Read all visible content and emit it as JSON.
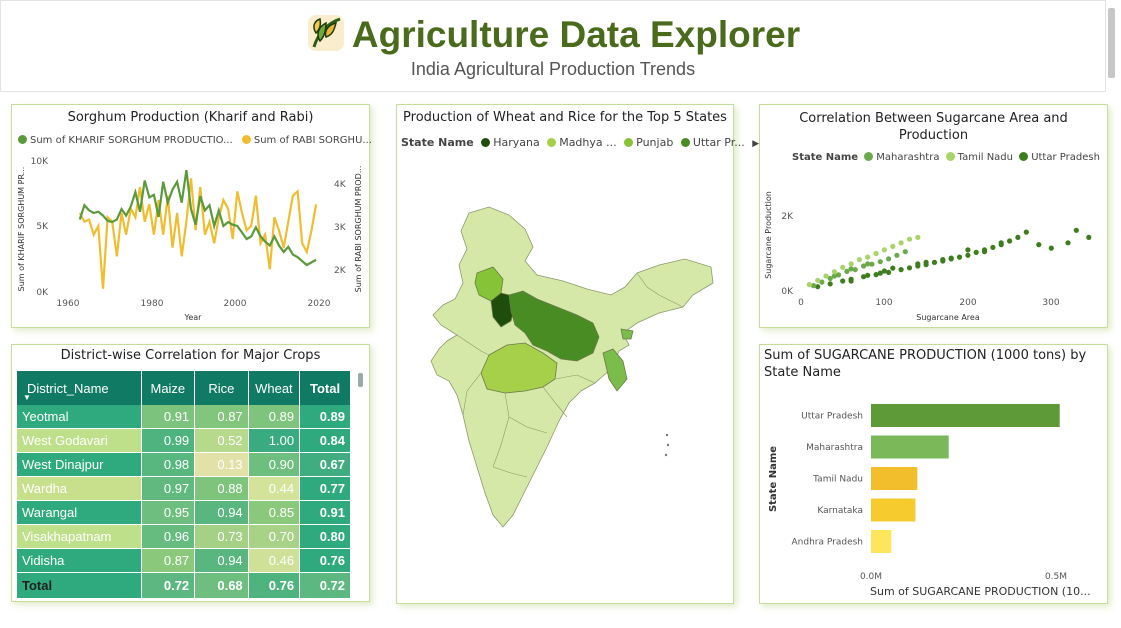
{
  "header": {
    "title": "Agriculture Data Explorer",
    "subtitle": "India Agricultural Production Trends",
    "logo_icon": "wheat-leaf-icon"
  },
  "sorghum": {
    "title": "Sorghum Production (Kharif and Rabi)",
    "legend": [
      {
        "label": "Sum of KHARIF SORGHUM PRODUCTIO...",
        "color": "#5a9a3a"
      },
      {
        "label": "Sum of RABI SORGHU...",
        "color": "#f0bc30"
      }
    ],
    "y_left_ticks": [
      "10K",
      "5K",
      "0K"
    ],
    "y_right_ticks": [
      "4K",
      "3K",
      "2K"
    ],
    "x_ticks": [
      "1960",
      "1980",
      "2000",
      "2020"
    ],
    "y_left_label": "Sum of KHARIF SORGHUM PR...",
    "y_right_label": "Sum of RABI SORGHUM PROD...",
    "x_label": "Year"
  },
  "matrix": {
    "title": "District-wise Correlation for Major Crops",
    "headers": [
      "District_Name",
      "Maize",
      "Rice",
      "Wheat",
      "Total"
    ],
    "rows": [
      {
        "name": "Yeotmal",
        "maize": "0.91",
        "rice": "0.87",
        "wheat": "0.89",
        "total": "0.89"
      },
      {
        "name": "West Godavari",
        "maize": "0.99",
        "rice": "0.52",
        "wheat": "1.00",
        "total": "0.84"
      },
      {
        "name": "West Dinajpur",
        "maize": "0.98",
        "rice": "0.13",
        "wheat": "0.90",
        "total": "0.67"
      },
      {
        "name": "Wardha",
        "maize": "0.97",
        "rice": "0.88",
        "wheat": "0.44",
        "total": "0.77"
      },
      {
        "name": "Warangal",
        "maize": "0.95",
        "rice": "0.94",
        "wheat": "0.85",
        "total": "0.91"
      },
      {
        "name": "Visakhapatnam",
        "maize": "0.96",
        "rice": "0.73",
        "wheat": "0.70",
        "total": "0.80"
      },
      {
        "name": "Vidisha",
        "maize": "0.87",
        "rice": "0.94",
        "wheat": "0.46",
        "total": "0.76"
      }
    ],
    "total_row": {
      "name": "Total",
      "maize": "0.72",
      "rice": "0.68",
      "wheat": "0.76",
      "total": "0.72"
    },
    "colors": {
      "header": "#117a65",
      "name_cells": [
        "#2eaa7e",
        "#bfe08a",
        "#2eaa7e",
        "#c8e08c",
        "#2eaa7e",
        "#bfe08a",
        "#2eaa7e"
      ],
      "maize": [
        "#7cc47e",
        "#4fb380",
        "#58b67f",
        "#62b97f",
        "#6ebe7f",
        "#66bb7f",
        "#8ac97c"
      ],
      "rice": [
        "#82c57c",
        "#b6d98c",
        "#e2e2a8",
        "#7ec47c",
        "#5ab67f",
        "#a5d186",
        "#5ab67f"
      ],
      "wheat": [
        "#7ec47c",
        "#3aaa80",
        "#6ebe7f",
        "#d4e39a",
        "#8ac97c",
        "#a8d288",
        "#cfe098"
      ],
      "total": [
        "#2eaa7e",
        "#2eaa7e",
        "#40ad80",
        "#2eaa7e",
        "#2eaa7e",
        "#2eaa7e",
        "#2eaa7e"
      ],
      "total_row": [
        "#2eaa7e",
        "#5cb880",
        "#6ebe7f",
        "#4fb380",
        "#5cb880"
      ]
    }
  },
  "map": {
    "title": "Production of Wheat and Rice for the Top 5 States",
    "legend_label": "State Name",
    "legend": [
      {
        "label": "Haryana",
        "color": "#1f4d0c"
      },
      {
        "label": "Madhya ...",
        "color": "#a6d04a"
      },
      {
        "label": "Punjab",
        "color": "#86c336"
      },
      {
        "label": "Uttar Pr...",
        "color": "#4a8c24"
      }
    ],
    "legend_arrow": "chevron-right-icon"
  },
  "sugar_scatter": {
    "title": "Correlation Between Sugarcane Area and Production",
    "legend_label": "State Name",
    "legend": [
      {
        "label": "Maharashtra",
        "color": "#6aaa4a"
      },
      {
        "label": "Tamil Nadu",
        "color": "#a8d46a"
      },
      {
        "label": "Uttar Pradesh",
        "color": "#3e7d1e"
      }
    ],
    "y_ticks": [
      "2K",
      "0K"
    ],
    "x_ticks": [
      "0",
      "100",
      "200",
      "300"
    ],
    "y_label": "Sugarcane Production",
    "x_label": "Sugarcane Area"
  },
  "sugar_bar": {
    "title": "Sum of SUGARCANE PRODUCTION (1000 tons) by State Name",
    "y_label": "State Name",
    "x_label": "Sum of SUGARCANE PRODUCTION (10...",
    "x_ticks": [
      "0.0M",
      "0.5M"
    ]
  },
  "chart_data": [
    {
      "type": "line",
      "title": "Sorghum Production (Kharif and Rabi)",
      "xlabel": "Year",
      "ylabel": "Sum of KHARIF SORGHUM PR...",
      "xlim": [
        1960,
        2020
      ],
      "series": [
        {
          "name": "Sum of KHARIF SORGHUM PRODUCTIO...",
          "axis": "left",
          "ylim": [
            0,
            10000
          ],
          "x": [
            1966,
            1967,
            1968,
            1969,
            1970,
            1971,
            1972,
            1973,
            1974,
            1975,
            1976,
            1977,
            1978,
            1979,
            1980,
            1981,
            1982,
            1983,
            1984,
            1985,
            1986,
            1987,
            1988,
            1989,
            1990,
            1991,
            1992,
            1993,
            1994,
            1995,
            1996,
            1997,
            1998,
            1999,
            2000,
            2001,
            2002,
            2003,
            2004,
            2005,
            2006,
            2007,
            2008,
            2009,
            2010,
            2011,
            2012,
            2013,
            2014,
            2015,
            2016,
            2017
          ],
          "y": [
            5500,
            6600,
            6200,
            6000,
            6100,
            5800,
            5400,
            5300,
            5500,
            6300,
            5800,
            6500,
            7600,
            6100,
            8500,
            7200,
            7400,
            5700,
            8400,
            6800,
            7800,
            8400,
            6800,
            9300,
            6300,
            5100,
            7300,
            6200,
            6600,
            5000,
            6200,
            5000,
            5300,
            5100,
            5000,
            4500,
            4000,
            4200,
            4900,
            4200,
            3800,
            3500,
            4200,
            3500,
            3000,
            3400,
            2800,
            2600,
            2300,
            2000,
            2200,
            2400
          ]
        },
        {
          "name": "Sum of RABI SORGHU...",
          "axis": "right",
          "ylim": [
            1500,
            4500
          ],
          "x": [
            1966,
            1967,
            1968,
            1969,
            1970,
            1971,
            1972,
            1973,
            1974,
            1975,
            1976,
            1977,
            1978,
            1979,
            1980,
            1981,
            1982,
            1983,
            1984,
            1985,
            1986,
            1987,
            1988,
            1989,
            1990,
            1991,
            1992,
            1993,
            1994,
            1995,
            1996,
            1997,
            1998,
            1999,
            2000,
            2001,
            2002,
            2003,
            2004,
            2005,
            2006,
            2007,
            2008,
            2009,
            2010,
            2011,
            2012,
            2013,
            2014,
            2015,
            2016,
            2017
          ],
          "y": [
            3300,
            3100,
            3150,
            2800,
            3000,
            1550,
            3200,
            3100,
            2300,
            3300,
            2800,
            3400,
            3200,
            3900,
            3100,
            3500,
            2800,
            3600,
            2800,
            3700,
            2500,
            3300,
            2300,
            3100,
            4100,
            2900,
            3900,
            2800,
            3100,
            2600,
            3200,
            3600,
            3400,
            2700,
            3800,
            3300,
            2900,
            3000,
            3700,
            2600,
            2800,
            2000,
            3200,
            2900,
            2500,
            3100,
            3700,
            3800,
            2600,
            2400,
            2900,
            3500
          ]
        }
      ]
    },
    {
      "type": "scatter",
      "title": "Correlation Between Sugarcane Area and Production",
      "xlabel": "Sugarcane Area",
      "ylabel": "Sugarcane Production",
      "xlim": [
        0,
        350
      ],
      "ylim": [
        0,
        2800
      ],
      "series": [
        {
          "name": "Uttar Pradesh",
          "x": [
            20,
            35,
            50,
            60,
            75,
            90,
            105,
            120,
            130,
            140,
            150,
            160,
            170,
            180,
            190,
            200,
            210,
            220,
            230,
            240,
            250,
            260,
            270,
            285,
            300,
            320,
            330,
            345,
            60,
            100,
            140,
            180,
            220,
            200,
            240,
            150,
            110,
            80,
            95,
            170
          ],
          "y": [
            120,
            200,
            280,
            330,
            400,
            460,
            520,
            600,
            650,
            700,
            740,
            800,
            840,
            900,
            950,
            1000,
            1080,
            1150,
            1220,
            1300,
            1400,
            1500,
            1650,
            1300,
            1200,
            1350,
            1700,
            1500,
            280,
            560,
            760,
            920,
            1100,
            1150,
            1350,
            800,
            640,
            440,
            500,
            880
          ]
        },
        {
          "name": "Maharashtra",
          "x": [
            15,
            25,
            35,
            45,
            55,
            65,
            75,
            85,
            95,
            105,
            115,
            125,
            40,
            60,
            80
          ],
          "y": [
            150,
            250,
            350,
            450,
            550,
            600,
            700,
            750,
            820,
            900,
            1000,
            1100,
            420,
            620,
            760
          ]
        },
        {
          "name": "Tamil Nadu",
          "x": [
            10,
            20,
            30,
            40,
            50,
            60,
            70,
            80,
            90,
            100,
            110,
            120,
            130,
            140
          ],
          "y": [
            180,
            300,
            420,
            540,
            660,
            760,
            880,
            950,
            1050,
            1150,
            1250,
            1350,
            1450,
            1500
          ]
        }
      ]
    },
    {
      "type": "bar",
      "orientation": "horizontal",
      "title": "Sum of SUGARCANE PRODUCTION (1000 tons) by State Name",
      "xlabel": "Sum of SUGARCANE PRODUCTION (10...",
      "ylabel": "State Name",
      "xlim": [
        0,
        600000
      ],
      "categories": [
        "Uttar Pradesh",
        "Maharashtra",
        "Tamil Nadu",
        "Karnataka",
        "Andhra Pradesh"
      ],
      "values": [
        510000,
        210000,
        125000,
        120000,
        55000
      ],
      "colors": [
        "#5e9a38",
        "#7bb85a",
        "#f2be2c",
        "#f5cb2e",
        "#fbe65c"
      ]
    }
  ]
}
